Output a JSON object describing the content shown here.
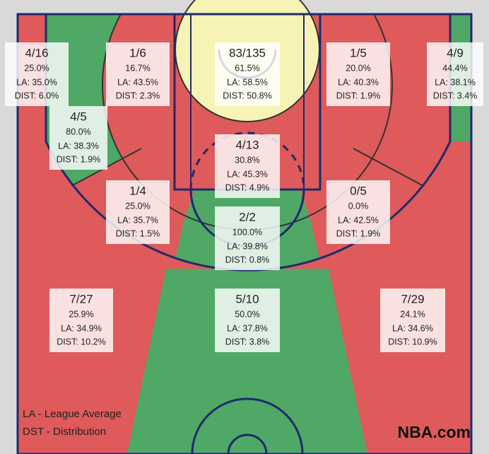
{
  "zones": [
    {
      "shots": "4/16",
      "pct": "25.0%",
      "la": "LA: 35.0%",
      "dist": "DIST: 6.0%"
    },
    {
      "shots": "1/6",
      "pct": "16.7%",
      "la": "LA: 43.5%",
      "dist": "DIST: 2.3%"
    },
    {
      "shots": "83/135",
      "pct": "61.5%",
      "la": "LA: 58.5%",
      "dist": "DIST: 50.8%"
    },
    {
      "shots": "1/5",
      "pct": "20.0%",
      "la": "LA: 40.3%",
      "dist": "DIST: 1.9%"
    },
    {
      "shots": "4/9",
      "pct": "44.4%",
      "la": "LA: 38.1%",
      "dist": "DIST: 3.4%"
    },
    {
      "shots": "4/5",
      "pct": "80.0%",
      "la": "LA: 38.3%",
      "dist": "DIST: 1.9%"
    },
    {
      "shots": "4/13",
      "pct": "30.8%",
      "la": "LA: 45.3%",
      "dist": "DIST: 4.9%"
    },
    {
      "shots": "1/4",
      "pct": "25.0%",
      "la": "LA: 35.7%",
      "dist": "DIST: 1.5%"
    },
    {
      "shots": "2/2",
      "pct": "100.0%",
      "la": "LA: 39.8%",
      "dist": "DIST: 0.8%"
    },
    {
      "shots": "0/5",
      "pct": "0.0%",
      "la": "LA: 42.5%",
      "dist": "DIST: 1.9%"
    },
    {
      "shots": "7/27",
      "pct": "25.9%",
      "la": "LA: 34.9%",
      "dist": "DIST: 10.2%"
    },
    {
      "shots": "5/10",
      "pct": "50.0%",
      "la": "LA: 37.8%",
      "dist": "DIST: 3.8%"
    },
    {
      "shots": "7/29",
      "pct": "24.1%",
      "la": "LA: 34.6%",
      "dist": "DIST: 10.9%"
    }
  ],
  "legend": [
    "LA - League Average",
    "DST - Distribution"
  ],
  "brand": "NBA.com"
}
